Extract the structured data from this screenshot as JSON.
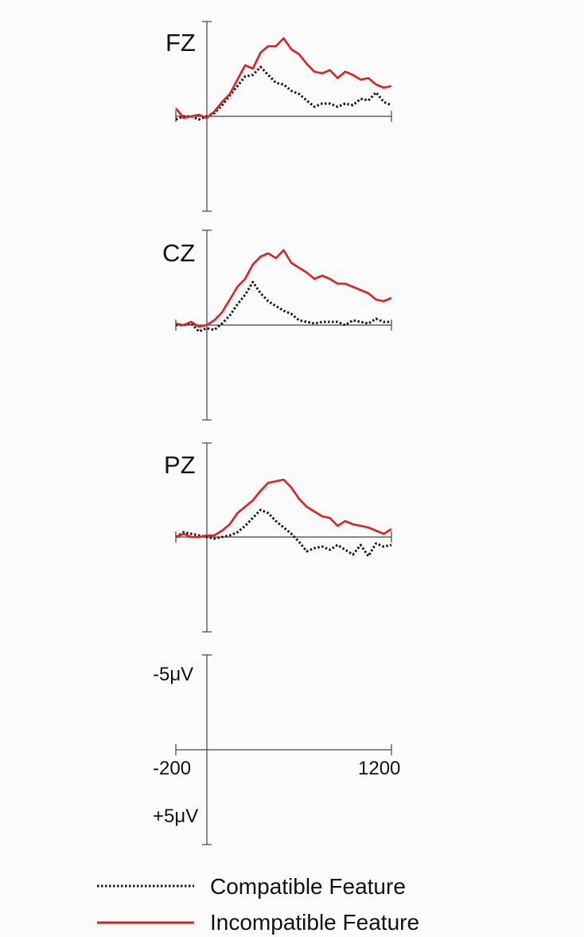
{
  "chart_data": {
    "type": "line",
    "x_unit": "ms",
    "y_unit": "µV",
    "xlim": [
      -200,
      1200
    ],
    "ylim": [
      -5,
      5
    ],
    "negative_up": true,
    "grid": false,
    "legend_position": "bottom",
    "x": [
      -200,
      -150,
      -100,
      -50,
      0,
      50,
      100,
      150,
      200,
      250,
      300,
      350,
      400,
      450,
      500,
      550,
      600,
      650,
      700,
      750,
      800,
      850,
      900,
      950,
      1000,
      1050,
      1100,
      1150,
      1200
    ],
    "panels": [
      {
        "electrode": "FZ",
        "series": [
          {
            "name": "Compatible Feature",
            "style": "dotted",
            "color": "#1a1a1a",
            "values": [
              -0.2,
              0,
              0,
              -0.2,
              0,
              0.2,
              0.7,
              1.3,
              1.9,
              2.5,
              2.6,
              3.1,
              2.6,
              2.1,
              2.0,
              1.6,
              1.4,
              1.0,
              0.6,
              0.8,
              0.8,
              0.6,
              0.8,
              0.7,
              1.1,
              1.0,
              1.5,
              0.9,
              0.7
            ]
          },
          {
            "name": "Incompatible Feature",
            "style": "solid",
            "color": "#e02020",
            "values": [
              0.5,
              -0.1,
              0,
              0.1,
              -0.1,
              0.3,
              0.9,
              1.4,
              2.3,
              3.2,
              3.0,
              4.0,
              4.4,
              4.4,
              4.9,
              4.2,
              3.9,
              3.3,
              2.8,
              2.7,
              2.9,
              2.4,
              2.8,
              2.6,
              2.3,
              2.4,
              2.0,
              1.8,
              1.9
            ]
          }
        ]
      },
      {
        "electrode": "CZ",
        "series": [
          {
            "name": "Compatible Feature",
            "style": "dotted",
            "color": "#1a1a1a",
            "values": [
              0,
              0,
              0.1,
              -0.4,
              -0.2,
              -0.3,
              0.1,
              0.6,
              1.3,
              1.9,
              2.7,
              2.0,
              1.5,
              1.2,
              0.9,
              0.7,
              0.3,
              0.2,
              0.1,
              0.2,
              0.2,
              0.2,
              0,
              0.3,
              0.2,
              0.1,
              0.4,
              0.2,
              0.2
            ]
          },
          {
            "name": "Incompatible Feature",
            "style": "solid",
            "color": "#e02020",
            "values": [
              0.1,
              0,
              0.2,
              -0.1,
              0,
              0.3,
              0.8,
              1.6,
              2.4,
              2.9,
              3.8,
              4.3,
              4.5,
              4.2,
              4.7,
              3.9,
              3.6,
              3.3,
              2.9,
              3.1,
              2.9,
              2.6,
              2.6,
              2.4,
              2.2,
              2.0,
              1.6,
              1.5,
              1.7
            ]
          }
        ]
      },
      {
        "electrode": "PZ",
        "series": [
          {
            "name": "Compatible Feature",
            "style": "dotted",
            "color": "#1a1a1a",
            "values": [
              0,
              0.3,
              0.2,
              0.1,
              0,
              -0.1,
              0,
              0.1,
              0.3,
              0.7,
              1.2,
              1.7,
              1.5,
              1.0,
              0.6,
              0.2,
              -0.3,
              -0.9,
              -0.7,
              -0.6,
              -0.8,
              -0.5,
              -0.8,
              -1.1,
              -0.5,
              -1.2,
              -0.4,
              -0.6,
              -0.5
            ]
          },
          {
            "name": "Incompatible Feature",
            "style": "solid",
            "color": "#e02020",
            "values": [
              0,
              0.2,
              0,
              0,
              0.1,
              0.1,
              0.4,
              0.8,
              1.5,
              1.9,
              2.3,
              2.9,
              3.4,
              3.5,
              3.6,
              3.1,
              2.4,
              1.9,
              1.6,
              1.3,
              1.2,
              0.7,
              1.0,
              0.8,
              0.7,
              0.6,
              0.4,
              0.2,
              0.5
            ]
          }
        ]
      }
    ],
    "scale_bar": {
      "y_top_label": "-5μV",
      "y_bottom_label": "+5μV",
      "x_start_label": "-200",
      "x_end_label": "1200"
    },
    "legend": [
      {
        "label": "Compatible Feature",
        "style": "dotted",
        "color": "#1a1a1a"
      },
      {
        "label": "Incompatible Feature",
        "style": "solid",
        "color": "#e02020"
      }
    ]
  }
}
